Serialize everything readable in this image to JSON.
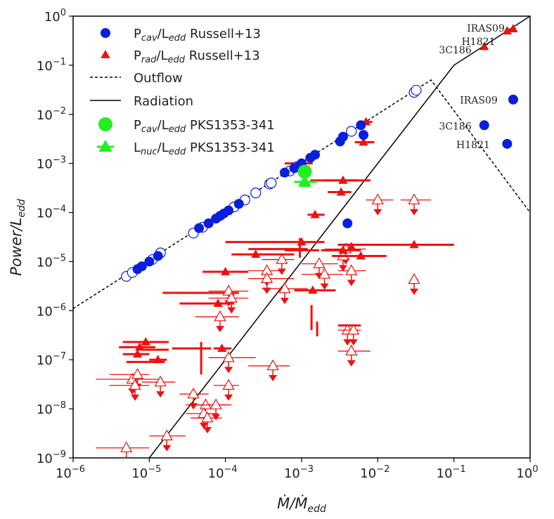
{
  "chart_data": {
    "type": "scatter",
    "xscale": "log",
    "yscale": "log",
    "xlim": [
      1e-06,
      1
    ],
    "ylim": [
      1e-09,
      1
    ],
    "xlabel": "Ṁ/Ṁedd",
    "ylabel": "Power/Ledd",
    "xticks": [
      {
        "v": 1e-06,
        "b": "10",
        "e": "−6"
      },
      {
        "v": 1e-05,
        "b": "10",
        "e": "−5"
      },
      {
        "v": 0.0001,
        "b": "10",
        "e": "−4"
      },
      {
        "v": 0.001,
        "b": "10",
        "e": "−3"
      },
      {
        "v": 0.01,
        "b": "10",
        "e": "−2"
      },
      {
        "v": 0.1,
        "b": "10",
        "e": "−1"
      },
      {
        "v": 1,
        "b": "10",
        "e": "0"
      }
    ],
    "yticks": [
      {
        "v": 1e-09,
        "b": "10",
        "e": "−9"
      },
      {
        "v": 1e-08,
        "b": "10",
        "e": "−8"
      },
      {
        "v": 1e-07,
        "b": "10",
        "e": "−7"
      },
      {
        "v": 1e-06,
        "b": "10",
        "e": "−6"
      },
      {
        "v": 1e-05,
        "b": "10",
        "e": "−5"
      },
      {
        "v": 0.0001,
        "b": "10",
        "e": "−4"
      },
      {
        "v": 0.001,
        "b": "10",
        "e": "−3"
      },
      {
        "v": 0.01,
        "b": "10",
        "e": "−2"
      },
      {
        "v": 0.1,
        "b": "10",
        "e": "−1"
      },
      {
        "v": 1,
        "b": "10",
        "e": "0"
      }
    ],
    "colors": {
      "blue": "#0a1fdc",
      "red": "#ee1111",
      "green": "#22ee22",
      "line": "#000000"
    },
    "legend": {
      "placement": "upper-left",
      "entries": [
        {
          "marker": "blue-circle",
          "label": "Pcav/Ledd Russell+13"
        },
        {
          "marker": "red-triangle",
          "label": "Prad/Ledd Russell+13"
        },
        {
          "marker": "dashed-line",
          "label": "Outflow"
        },
        {
          "marker": "solid-line",
          "label": "Radiation"
        },
        {
          "marker": "green-circle",
          "label": "Pcav/Ledd PKS1353-341"
        },
        {
          "marker": "green-triangle",
          "label": "Lnuc/Ledd PKS1353-341"
        }
      ]
    },
    "series": [
      {
        "name": "Outflow",
        "style": "dashed",
        "points": [
          [
            1e-06,
            1.1e-06
          ],
          [
            0.05,
            0.05
          ],
          [
            1,
            0.0001
          ]
        ]
      },
      {
        "name": "Radiation",
        "style": "solid",
        "points": [
          [
            1e-05,
            1e-09
          ],
          [
            0.1,
            0.1
          ],
          [
            1,
            1
          ]
        ]
      },
      {
        "name": "Pcav/Ledd Russell+13",
        "style": "blue-circle",
        "filled": [
          [
            7e-06,
            7e-06
          ],
          [
            8e-06,
            8e-06
          ],
          [
            1e-05,
            1e-05
          ],
          [
            1.3e-05,
            1.3e-05
          ],
          [
            4.5e-05,
            4.8e-05
          ],
          [
            6e-05,
            6e-05
          ],
          [
            7.5e-05,
            7.5e-05
          ],
          [
            8.5e-05,
            8.5e-05
          ],
          [
            9.5e-05,
            9.5e-05
          ],
          [
            0.00011,
            0.00011
          ],
          [
            0.00015,
            0.00015
          ],
          [
            0.0006,
            0.00065
          ],
          [
            0.0008,
            0.0008
          ],
          [
            0.0009,
            0.00085
          ],
          [
            0.001,
            0.001
          ],
          [
            0.0013,
            0.0013
          ],
          [
            0.0015,
            0.0015
          ],
          [
            0.0032,
            0.0028
          ],
          [
            0.0035,
            0.0035
          ],
          [
            0.006,
            0.006
          ],
          [
            0.0065,
            0.0038
          ],
          [
            0.004,
            6e-05
          ]
        ],
        "open": [
          [
            5e-06,
            5e-06
          ],
          [
            6e-06,
            6e-06
          ],
          [
            1.1e-05,
            1.1e-05
          ],
          [
            1.4e-05,
            1.5e-05
          ],
          [
            3.8e-05,
            3.8e-05
          ],
          [
            5e-05,
            5e-05
          ],
          [
            0.00013,
            0.00013
          ],
          [
            0.00018,
            0.00018
          ],
          [
            0.00025,
            0.00025
          ],
          [
            0.00038,
            0.00038
          ],
          [
            0.0004,
            0.0004
          ],
          [
            0.0007,
            0.0007
          ],
          [
            0.00085,
            0.00085
          ],
          [
            0.0045,
            0.0045
          ],
          [
            0.03,
            0.028
          ],
          [
            0.032,
            0.031
          ]
        ]
      },
      {
        "name": "Prad/Ledd Russell+13",
        "style": "red-triangle",
        "filled": [
          [
            0.25,
            0.24
          ],
          [
            0.5,
            0.5
          ],
          [
            0.6,
            0.55
          ],
          [
            0.007,
            0.007
          ],
          [
            0.0065,
            0.0027
          ],
          [
            0.001,
            0.001
          ],
          [
            0.0035,
            0.00045
          ],
          [
            0.0033,
            0.00026
          ],
          [
            0.0015,
            9e-05
          ],
          [
            0.00025,
            1.4e-05
          ],
          [
            0.0001,
            6.2e-06
          ],
          [
            0.001,
            2.5e-05
          ],
          [
            0.0035,
            1.7e-05
          ],
          [
            0.006,
            1.3e-05
          ],
          [
            0.03,
            2.2e-05
          ],
          [
            0.0014,
            2.6e-06
          ],
          [
            8e-05,
            1.4e-06
          ],
          [
            7e-06,
            1.3e-07
          ],
          [
            9e-06,
            2.3e-07
          ],
          [
            1.3e-05,
            1e-07
          ],
          [
            7.5e-06,
            1.8e-07
          ],
          [
            9e-05,
            1.7e-07
          ],
          [
            0.0045,
            2e-05
          ]
        ],
        "filled_xerr": [
          null,
          null,
          null,
          [
            0.006,
            0.0085
          ],
          [
            0.005,
            0.009
          ],
          [
            0.0006,
            0.0014
          ],
          [
            0.002,
            0.0055
          ],
          [
            0.0022,
            0.0045
          ],
          [
            0.0012,
            0.002
          ],
          [
            0.00012,
            0.0008
          ],
          [
            5e-05,
            0.0002
          ],
          [
            0.0004,
            0.002
          ],
          [
            0.0018,
            0.006
          ],
          [
            0.0025,
            0.013
          ],
          [
            0.003,
            0.1
          ],
          [
            0.0008,
            0.0028
          ],
          [
            2.5e-05,
            0.00013
          ],
          [
            4.5e-06,
            1e-05
          ],
          [
            4.5e-06,
            1.8e-05
          ],
          [
            1e-05,
            1.7e-05
          ],
          [
            4e-06,
            1.2e-05
          ],
          [
            7e-05,
            0.00012
          ],
          null
        ],
        "bars": [
          {
            "x": [
              0.0013,
              0.008
            ],
            "y": 0.00045
          },
          {
            "x": [
              0.0002,
              0.0012
            ],
            "y": 1.8e-05
          },
          {
            "x": [
              0.0006,
              0.0017
            ],
            "y": 1.7e-05
          },
          {
            "x": [
              0.0001,
              0.0005
            ],
            "y": 2.5e-05
          },
          {
            "x": [
              1.5e-05,
              0.00015
            ],
            "y": 2.3e-06
          },
          {
            "x": [
              8e-06,
              1.8e-05
            ],
            "y": 1.6e-07
          },
          {
            "x": [
              5e-06,
              1.6e-05
            ],
            "y": 9e-08
          },
          {
            "x": [
              2e-05,
              6.5e-05
            ],
            "y": 1.7e-07
          },
          {
            "x": [
              0.003,
              0.006
            ],
            "y": 5e-07
          }
        ],
        "vbars": [
          {
            "x": 0.00135,
            "y": [
              4e-07,
              1.3e-06
            ]
          },
          {
            "x": 0.0016,
            "y": [
              3e-07,
              6e-07
            ]
          },
          {
            "x": 4.8e-05,
            "y": [
              5e-08,
              2.3e-07
            ]
          },
          {
            "x": 0.00095,
            "y": [
              1.2e-05,
              3e-05
            ]
          }
        ],
        "upper_limits": [
          [
            0.01,
            0.00018
          ],
          [
            0.03,
            0.00018
          ],
          [
            0.0038,
            1.8e-05
          ],
          [
            0.0035,
            1.3e-05
          ],
          [
            0.0045,
            6.5e-06
          ],
          [
            0.00055,
            1.1e-05
          ],
          [
            0.0017,
            9e-06
          ],
          [
            0.002,
            5.5e-06
          ],
          [
            0.00035,
            6.5e-06
          ],
          [
            0.00035,
            4.5e-06
          ],
          [
            0.0006,
            2.8e-06
          ],
          [
            0.00011,
            2.5e-06
          ],
          [
            0.00012,
            1.8e-06
          ],
          [
            8.5e-05,
            7.5e-07
          ],
          [
            0.004,
            4e-07
          ],
          [
            0.0048,
            4e-07
          ],
          [
            0.0045,
            1.5e-07
          ],
          [
            0.00042,
            7.5e-08
          ],
          [
            0.00011,
            1.1e-07
          ],
          [
            6e-06,
            4e-08
          ],
          [
            7e-06,
            5e-08
          ],
          [
            1.4e-05,
            3.5e-08
          ],
          [
            6.5e-06,
            3e-08
          ],
          [
            3.8e-05,
            2e-08
          ],
          [
            5.5e-05,
            1.2e-08
          ],
          [
            7.5e-05,
            1.2e-08
          ],
          [
            0.00011,
            3e-08
          ],
          [
            5.2e-05,
            8e-09
          ],
          [
            5.8e-05,
            6.5e-09
          ],
          [
            1.7e-05,
            2.8e-09
          ],
          [
            5e-06,
            1.6e-09
          ],
          [
            0.03,
            4.3e-06
          ]
        ],
        "upper_limits_xerr": [
          [
            0.007,
            0.016
          ],
          [
            0.02,
            0.05
          ],
          [
            0.002,
            0.007
          ],
          [
            0.0025,
            0.005
          ],
          [
            0.003,
            0.007
          ],
          [
            0.0003,
            0.0008
          ],
          [
            0.001,
            0.003
          ],
          [
            0.001,
            0.0035
          ],
          [
            0.0002,
            0.0006
          ],
          [
            0.0002,
            0.0008
          ],
          [
            0.0003,
            0.0012
          ],
          [
            6e-05,
            0.0002
          ],
          [
            6e-05,
            0.0002
          ],
          [
            4e-05,
            0.00015
          ],
          [
            0.003,
            0.0055
          ],
          [
            0.0035,
            0.006
          ],
          [
            0.003,
            0.008
          ],
          [
            0.0002,
            0.0007
          ],
          [
            6e-05,
            0.00025
          ],
          [
            2e-06,
            1.5e-05
          ],
          [
            3e-06,
            1e-05
          ],
          [
            8e-06,
            2.2e-05
          ],
          [
            3e-06,
            1e-05
          ],
          [
            2.5e-05,
            6e-05
          ],
          [
            3e-05,
            0.0001
          ],
          [
            4e-05,
            0.00012
          ],
          [
            7e-05,
            0.00015
          ],
          [
            3e-05,
            8e-05
          ],
          [
            3.5e-05,
            9e-05
          ],
          [
            1e-05,
            3e-05
          ],
          [
            2e-06,
            1e-05
          ],
          [
            0.028,
            0.034
          ]
        ]
      },
      {
        "name": "Pcav/Ledd PKS1353-341",
        "style": "green-circle",
        "points": [
          [
            0.0011,
            0.00068
          ]
        ]
      },
      {
        "name": "Lnuc/Ledd PKS1353-341",
        "style": "green-triangle",
        "points": [
          [
            0.0011,
            0.00042
          ]
        ],
        "xerr": [
          [
            0.0008,
            0.0016
          ]
        ]
      }
    ],
    "annotations": [
      {
        "text": "IRAS09",
        "x": 0.55,
        "y": 0.55,
        "anchor": "end"
      },
      {
        "text": "H1821",
        "x": 0.45,
        "y": 0.45,
        "anchor": "end"
      },
      {
        "text": "3C186",
        "x": 0.22,
        "y": 0.22,
        "anchor": "end"
      },
      {
        "text": "IRAS09",
        "x": 0.55,
        "y": 0.02,
        "anchor": "end"
      },
      {
        "text": "3C186",
        "x": 0.22,
        "y": 0.006,
        "anchor": "end"
      },
      {
        "text": "H1821",
        "x": 0.4,
        "y": 0.0025,
        "anchor": "end"
      }
    ],
    "annot_points": [
      [
        0.6,
        0.02
      ],
      [
        0.25,
        0.006
      ],
      [
        0.5,
        0.0025
      ]
    ]
  }
}
